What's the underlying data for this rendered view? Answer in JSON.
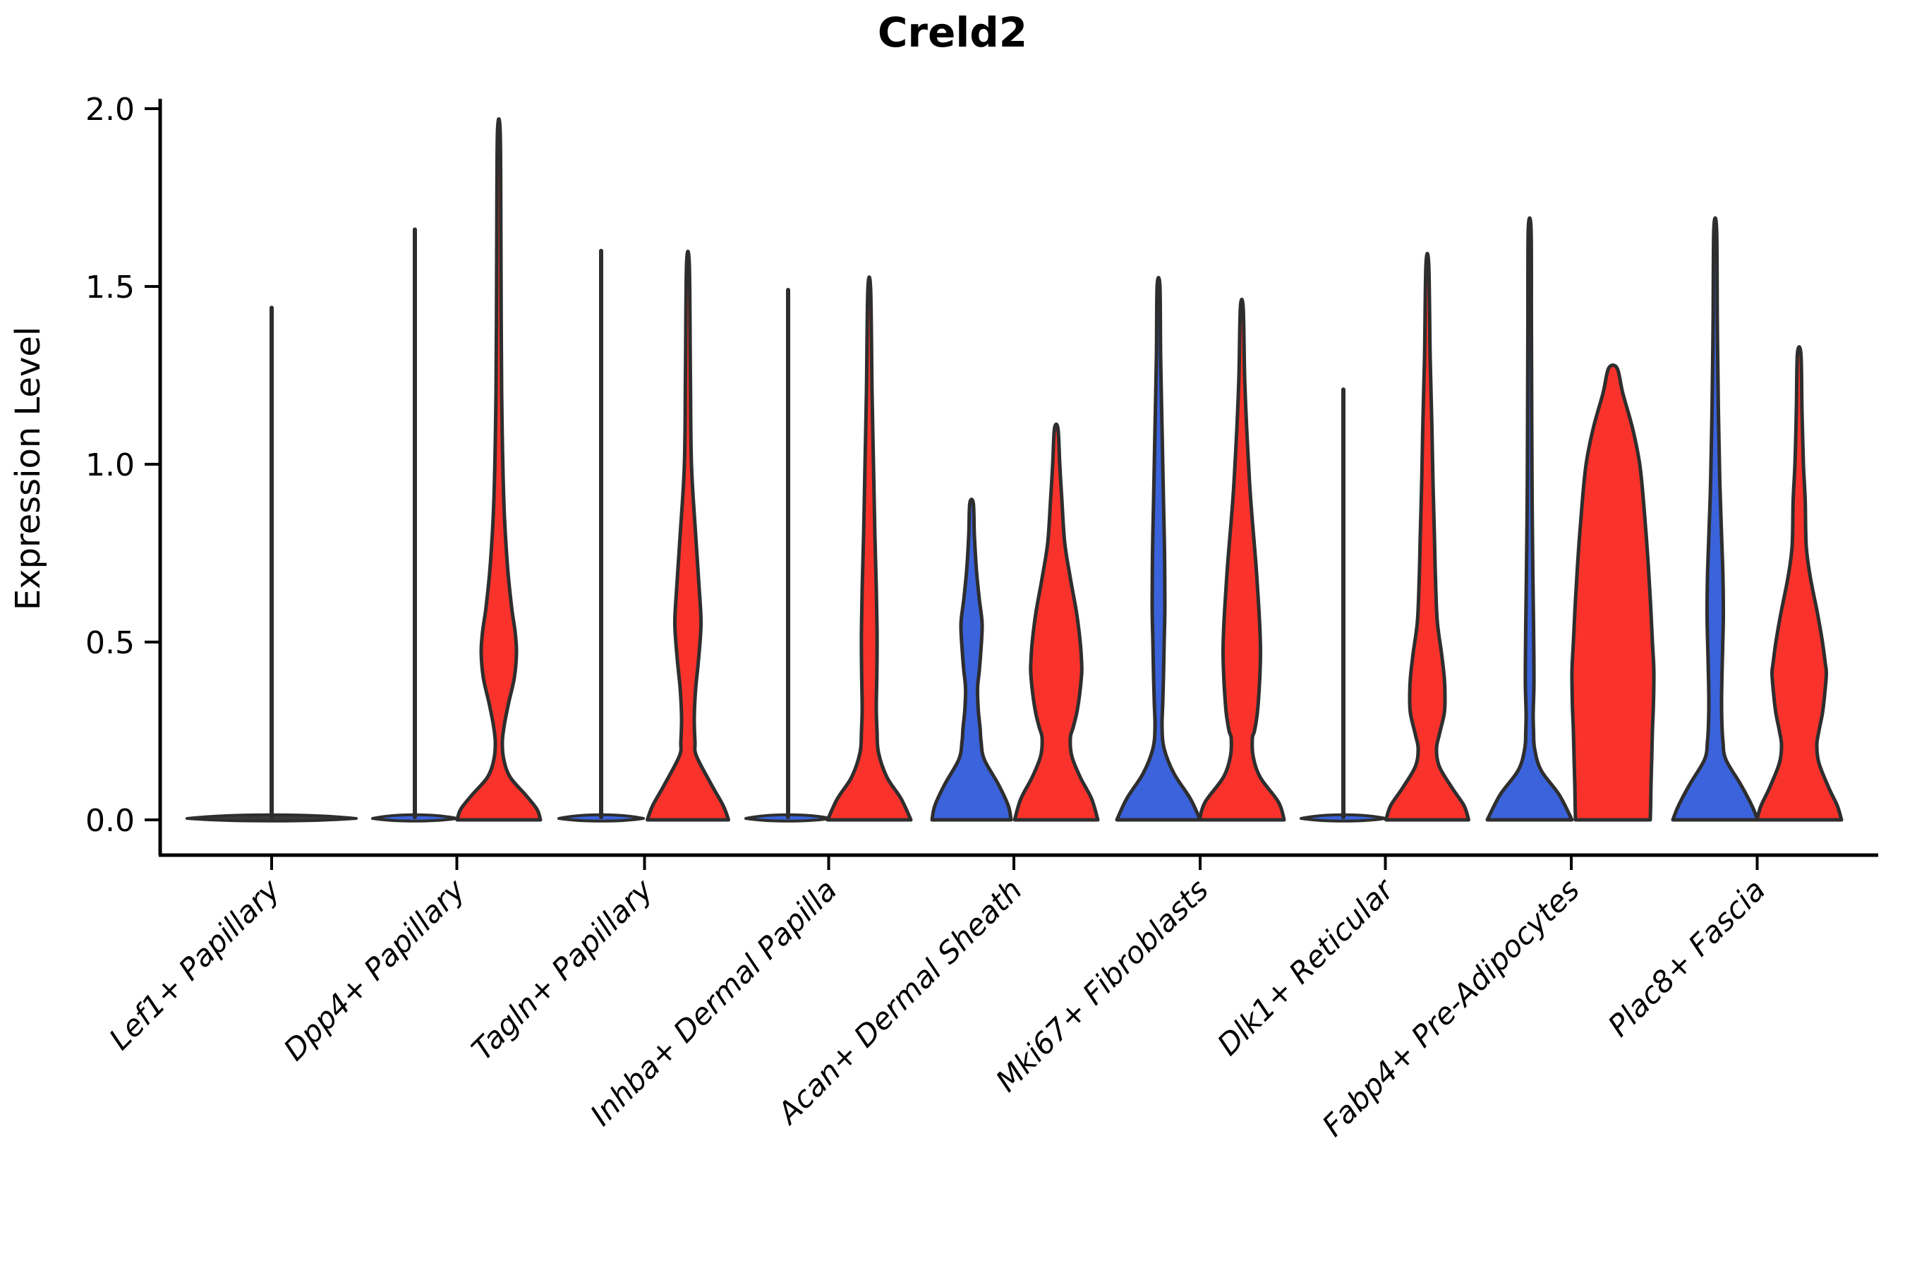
{
  "chart_data": {
    "type": "violin",
    "title": "Creld2",
    "ylabel": "Expression Level",
    "xlabel": "",
    "ylim": [
      0,
      2
    ],
    "yticks": [
      "0.0",
      "0.5",
      "1.0",
      "1.5",
      "2.0"
    ],
    "ytick_values": [
      0.0,
      0.5,
      1.0,
      1.5,
      2.0
    ],
    "grid": false,
    "legend": "none",
    "categories": [
      "Lef1+ Papillary",
      "Dpp4+ Papillary",
      "Tagln+ Papillary",
      "Inhba+ Dermal Papilla",
      "Acan+ Dermal Sheath",
      "Mki67+ Fibroblasts",
      "Dlk1+ Reticular",
      "Fabp4+ Pre-Adipocytes",
      "Plac8+ Fascia"
    ],
    "colors": {
      "blue": "#3B63DB",
      "red": "#F9332B",
      "outline": "#2E2E2E",
      "single": "#3A3A3A"
    },
    "violins": [
      {
        "category": "Lef1+ Papillary",
        "group": "single",
        "center_x": 385,
        "kind": "spike",
        "max_expression": 1.44,
        "pancake_halfwidth": 120
      },
      {
        "category": "Dpp4+ Papillary",
        "group": "blue",
        "center_x": 588,
        "kind": "spike",
        "max_expression": 1.66,
        "pancake_halfwidth": 60
      },
      {
        "category": "Dpp4+ Papillary",
        "group": "red",
        "center_x": 707,
        "kind": "body",
        "max_expression": 1.93,
        "profile": [
          [
            1.93,
            2
          ],
          [
            1.6,
            3
          ],
          [
            1.2,
            4
          ],
          [
            0.9,
            7
          ],
          [
            0.72,
            12
          ],
          [
            0.6,
            18
          ],
          [
            0.53,
            23
          ],
          [
            0.47,
            25
          ],
          [
            0.4,
            22
          ],
          [
            0.33,
            14
          ],
          [
            0.27,
            8
          ],
          [
            0.22,
            5
          ],
          [
            0.17,
            7
          ],
          [
            0.12,
            16
          ],
          [
            0.07,
            38
          ],
          [
            0.03,
            54
          ],
          [
            0,
            59
          ]
        ]
      },
      {
        "category": "Tagln+ Papillary",
        "group": "blue",
        "center_x": 852,
        "kind": "spike",
        "max_expression": 1.6,
        "pancake_halfwidth": 60
      },
      {
        "category": "Tagln+ Papillary",
        "group": "red",
        "center_x": 975,
        "kind": "body",
        "max_expression": 1.56,
        "profile": [
          [
            1.56,
            2
          ],
          [
            1.25,
            3.5
          ],
          [
            1.0,
            5
          ],
          [
            0.8,
            11
          ],
          [
            0.65,
            16
          ],
          [
            0.55,
            18.5
          ],
          [
            0.45,
            15
          ],
          [
            0.37,
            11
          ],
          [
            0.29,
            9
          ],
          [
            0.22,
            10
          ],
          [
            0.18,
            12
          ],
          [
            0.1,
            33
          ],
          [
            0.04,
            50
          ],
          [
            0,
            57.5
          ]
        ]
      },
      {
        "category": "Inhba+ Dermal Papilla",
        "group": "blue",
        "center_x": 1117,
        "kind": "spike",
        "max_expression": 1.49,
        "pancake_halfwidth": 60
      },
      {
        "category": "Inhba+ Dermal Papilla",
        "group": "red",
        "center_x": 1232,
        "kind": "body",
        "max_expression": 1.49,
        "profile": [
          [
            1.49,
            2
          ],
          [
            1.2,
            4
          ],
          [
            1.0,
            6
          ],
          [
            0.8,
            8
          ],
          [
            0.65,
            10
          ],
          [
            0.54,
            11
          ],
          [
            0.45,
            11
          ],
          [
            0.38,
            10.5
          ],
          [
            0.31,
            10
          ],
          [
            0.25,
            11
          ],
          [
            0.19,
            13
          ],
          [
            0.12,
            25
          ],
          [
            0.06,
            45
          ],
          [
            0,
            59
          ]
        ]
      },
      {
        "category": "Acan+ Dermal Sheath",
        "group": "blue",
        "center_x": 1377,
        "kind": "body",
        "max_expression": 0.89,
        "profile": [
          [
            0.89,
            2.5
          ],
          [
            0.8,
            4
          ],
          [
            0.7,
            7
          ],
          [
            0.62,
            11
          ],
          [
            0.55,
            15
          ],
          [
            0.47,
            13
          ],
          [
            0.42,
            11
          ],
          [
            0.37,
            8.5
          ],
          [
            0.31,
            9.5
          ],
          [
            0.26,
            12
          ],
          [
            0.22,
            13.5
          ],
          [
            0.17,
            18
          ],
          [
            0.1,
            38
          ],
          [
            0.04,
            52
          ],
          [
            0,
            56
          ]
        ]
      },
      {
        "category": "Acan+ Dermal Sheath",
        "group": "red",
        "center_x": 1497,
        "kind": "body",
        "max_expression": 1.1,
        "profile": [
          [
            1.1,
            2.5
          ],
          [
            1.0,
            5
          ],
          [
            0.9,
            8
          ],
          [
            0.78,
            12
          ],
          [
            0.68,
            20
          ],
          [
            0.58,
            29
          ],
          [
            0.5,
            34
          ],
          [
            0.44,
            36
          ],
          [
            0.41,
            36
          ],
          [
            0.35,
            33
          ],
          [
            0.3,
            29
          ],
          [
            0.26,
            24
          ],
          [
            0.23,
            20
          ],
          [
            0.18,
            22
          ],
          [
            0.12,
            34
          ],
          [
            0.06,
            50
          ],
          [
            0,
            59
          ]
        ]
      },
      {
        "category": "Mki67+ Fibroblasts",
        "group": "blue",
        "center_x": 1642,
        "kind": "body",
        "max_expression": 1.5,
        "profile": [
          [
            1.5,
            2
          ],
          [
            1.3,
            3
          ],
          [
            1.1,
            5
          ],
          [
            0.9,
            7
          ],
          [
            0.75,
            8.5
          ],
          [
            0.6,
            9
          ],
          [
            0.5,
            8
          ],
          [
            0.4,
            7
          ],
          [
            0.33,
            6
          ],
          [
            0.26,
            5
          ],
          [
            0.2,
            8
          ],
          [
            0.13,
            22
          ],
          [
            0.06,
            45
          ],
          [
            0,
            59
          ]
        ]
      },
      {
        "category": "Mki67+ Fibroblasts",
        "group": "red",
        "center_x": 1760,
        "kind": "body",
        "max_expression": 1.44,
        "profile": [
          [
            1.44,
            2
          ],
          [
            1.25,
            4
          ],
          [
            1.1,
            7
          ],
          [
            0.95,
            11
          ],
          [
            0.84,
            15
          ],
          [
            0.72,
            20
          ],
          [
            0.6,
            24
          ],
          [
            0.52,
            26
          ],
          [
            0.46,
            26.5
          ],
          [
            0.38,
            25
          ],
          [
            0.3,
            22
          ],
          [
            0.25,
            18
          ],
          [
            0.23,
            15
          ],
          [
            0.18,
            16
          ],
          [
            0.12,
            26
          ],
          [
            0.05,
            52
          ],
          [
            0,
            60
          ]
        ]
      },
      {
        "category": "Dlk1+ Reticular",
        "group": "blue",
        "center_x": 1904,
        "kind": "spike",
        "max_expression": 1.21,
        "pancake_halfwidth": 60
      },
      {
        "category": "Dlk1+ Reticular",
        "group": "red",
        "center_x": 2023,
        "kind": "body",
        "max_expression": 1.56,
        "profile": [
          [
            1.56,
            2
          ],
          [
            1.3,
            4
          ],
          [
            1.1,
            6.5
          ],
          [
            0.95,
            8
          ],
          [
            0.8,
            10
          ],
          [
            0.68,
            11.5
          ],
          [
            0.56,
            14
          ],
          [
            0.47,
            20
          ],
          [
            0.4,
            24
          ],
          [
            0.35,
            25
          ],
          [
            0.3,
            24
          ],
          [
            0.24,
            17
          ],
          [
            0.2,
            13
          ],
          [
            0.15,
            17
          ],
          [
            0.09,
            35
          ],
          [
            0.04,
            52
          ],
          [
            0,
            58.5
          ]
        ]
      },
      {
        "category": "Fabp4+ Pre-Adipocytes",
        "group": "blue",
        "center_x": 2168,
        "kind": "body",
        "max_expression": 1.66,
        "profile": [
          [
            1.66,
            2
          ],
          [
            1.4,
            2.5
          ],
          [
            1.1,
            3
          ],
          [
            0.9,
            3.5
          ],
          [
            0.7,
            4.5
          ],
          [
            0.55,
            5.5
          ],
          [
            0.45,
            6
          ],
          [
            0.37,
            6
          ],
          [
            0.3,
            5
          ],
          [
            0.25,
            5.5
          ],
          [
            0.2,
            7
          ],
          [
            0.14,
            16
          ],
          [
            0.07,
            42
          ],
          [
            0,
            60
          ]
        ]
      },
      {
        "category": "Fabp4+ Pre-Adipocytes",
        "group": "red",
        "center_x": 2286,
        "kind": "body",
        "max_expression": 1.27,
        "flat_bottom": true,
        "profile": [
          [
            1.27,
            6
          ],
          [
            1.2,
            14
          ],
          [
            1.1,
            28
          ],
          [
            1.0,
            38
          ],
          [
            0.88,
            44
          ],
          [
            0.75,
            49
          ],
          [
            0.62,
            53
          ],
          [
            0.5,
            56
          ],
          [
            0.42,
            58
          ],
          [
            0.33,
            57.5
          ],
          [
            0.25,
            56
          ],
          [
            0.17,
            55
          ],
          [
            0.1,
            54
          ],
          [
            0.04,
            53.5
          ],
          [
            0,
            53
          ]
        ]
      },
      {
        "category": "Plac8+ Fascia",
        "group": "blue",
        "center_x": 2431,
        "kind": "body",
        "max_expression": 1.66,
        "profile": [
          [
            1.66,
            2
          ],
          [
            1.4,
            3
          ],
          [
            1.15,
            4.5
          ],
          [
            0.95,
            6.5
          ],
          [
            0.8,
            9
          ],
          [
            0.68,
            11
          ],
          [
            0.57,
            11.5
          ],
          [
            0.48,
            10.5
          ],
          [
            0.4,
            9.5
          ],
          [
            0.33,
            9
          ],
          [
            0.27,
            9.5
          ],
          [
            0.22,
            11
          ],
          [
            0.17,
            15
          ],
          [
            0.1,
            36
          ],
          [
            0.04,
            52
          ],
          [
            0,
            60
          ]
        ]
      },
      {
        "category": "Plac8+ Fascia",
        "group": "red",
        "center_x": 2550,
        "kind": "body",
        "max_expression": 1.31,
        "profile": [
          [
            1.31,
            2.5
          ],
          [
            1.15,
            4
          ],
          [
            1.0,
            6
          ],
          [
            0.9,
            8.5
          ],
          [
            0.77,
            10
          ],
          [
            0.68,
            16
          ],
          [
            0.58,
            26
          ],
          [
            0.5,
            33
          ],
          [
            0.44,
            37
          ],
          [
            0.41,
            38.5
          ],
          [
            0.35,
            36
          ],
          [
            0.3,
            33
          ],
          [
            0.25,
            28
          ],
          [
            0.21,
            25
          ],
          [
            0.16,
            28
          ],
          [
            0.09,
            42
          ],
          [
            0.04,
            54
          ],
          [
            0,
            60
          ]
        ]
      }
    ]
  }
}
